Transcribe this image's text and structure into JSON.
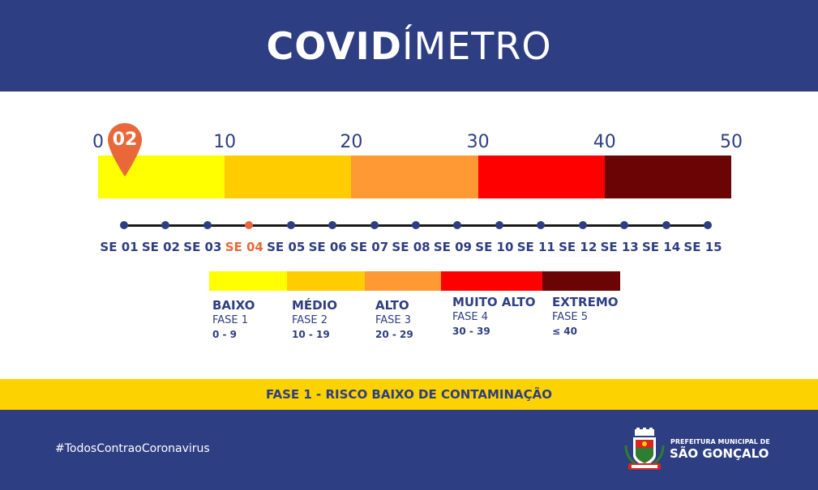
{
  "header": {
    "title_bold": "COVID",
    "title_light": "ÍMETRO",
    "background": "#2e3e82"
  },
  "gauge": {
    "min": 0,
    "max": 50,
    "ticks": [
      "0",
      "10",
      "20",
      "30",
      "40",
      "50"
    ],
    "current_value": 2,
    "current_label": "02",
    "pin_color": "#e8683a",
    "segments": [
      {
        "color": "#ffff00"
      },
      {
        "color": "#ffcc00"
      },
      {
        "color": "#ff9933"
      },
      {
        "color": "#ff0000"
      },
      {
        "color": "#6b0505"
      }
    ]
  },
  "timeline": {
    "weeks": [
      "SE 01",
      "SE 02",
      "SE 03",
      "SE 04",
      "SE 05",
      "SE 06",
      "SE 07",
      "SE 08",
      "SE 09",
      "SE 10",
      "SE 11",
      "SE 12",
      "SE 13",
      "SE 14",
      "SE 15"
    ],
    "current_index": 3,
    "highlight_color": "#e8683a",
    "default_color": "#2e3e82"
  },
  "legend": {
    "items": [
      {
        "name": "BAIXO",
        "phase": "FASE 1",
        "range": "0 - 9",
        "color": "#ffff00"
      },
      {
        "name": "MÉDIO",
        "phase": "FASE 2",
        "range": "10 - 19",
        "color": "#ffcc00"
      },
      {
        "name": "ALTO",
        "phase": "FASE 3",
        "range": "20 - 29",
        "color": "#ff9933"
      },
      {
        "name": "MUITO ALTO",
        "phase": "FASE 4",
        "range": "30 - 39",
        "color": "#ff0000"
      },
      {
        "name": "EXTREMO",
        "phase": "FASE 5",
        "range": "≤ 40",
        "color": "#6b0505"
      }
    ]
  },
  "status": {
    "text": "FASE 1 - RISCO BAIXO DE CONTAMINAÇÃO",
    "background": "#fcd200"
  },
  "footer": {
    "hashtag": "#TodosContraoCoronavirus",
    "logo_line1": "PREFEITURA MUNICIPAL DE",
    "logo_line2": "SÃO GONÇALO",
    "crest_icon": "city-coat-of-arms-icon"
  }
}
